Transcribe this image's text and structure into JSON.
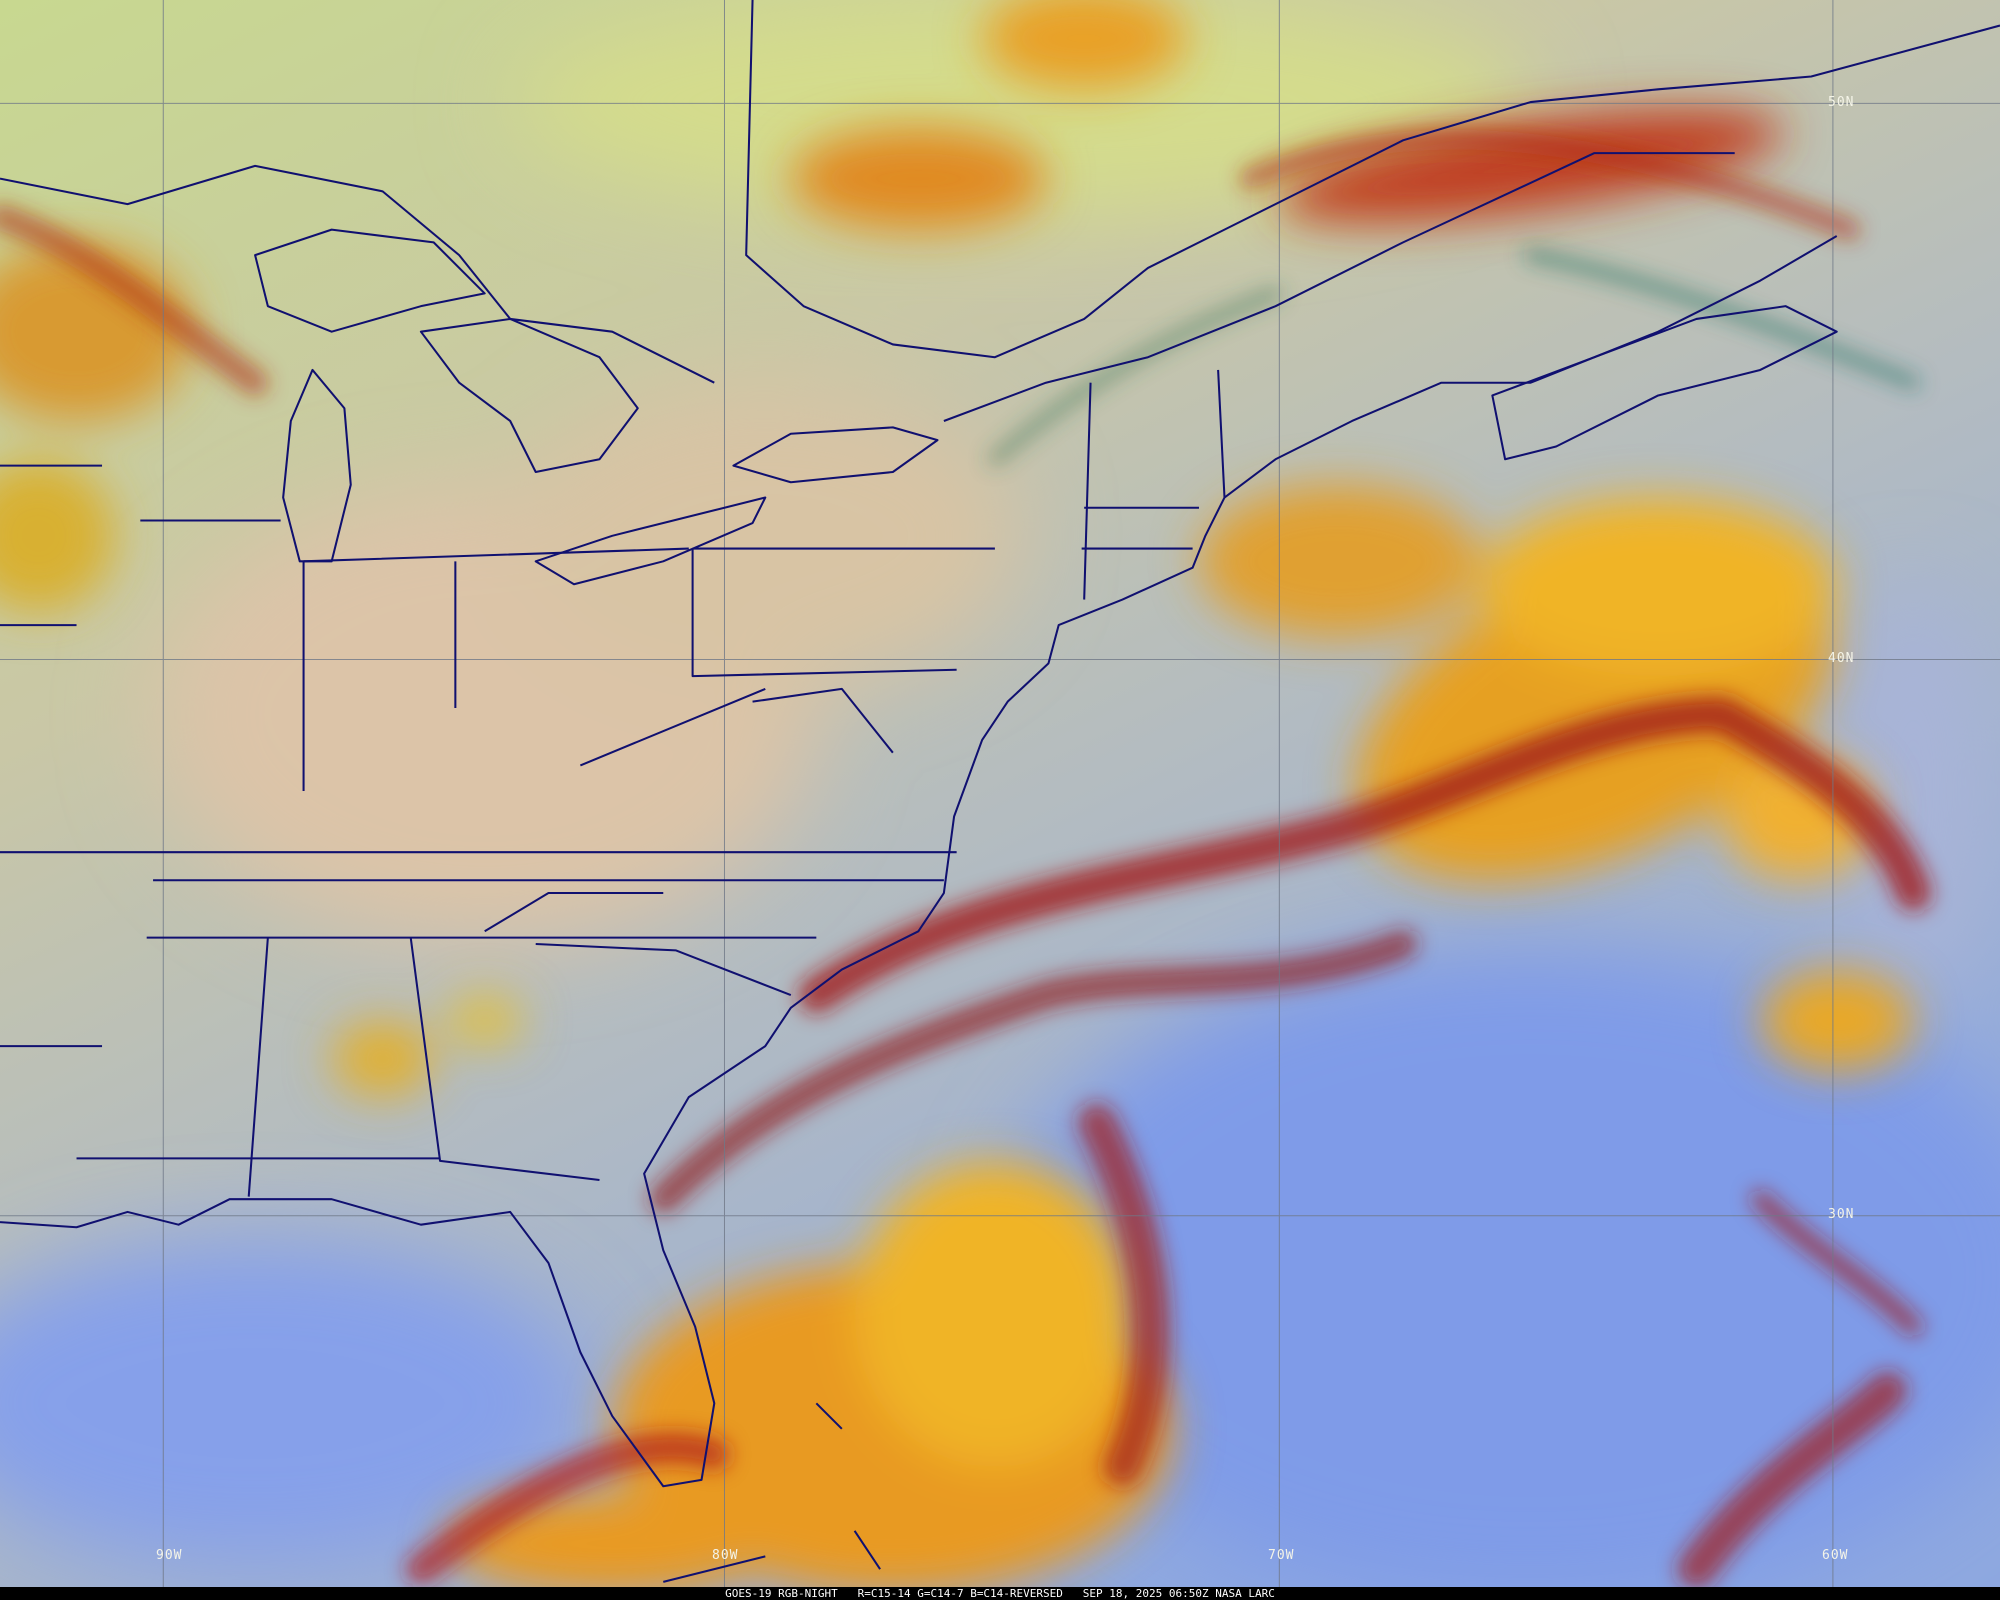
{
  "caption": "GOES-19 RGB-NIGHT   R=C15-14 G=C14-7 B=C14-REVERSED   SEP 18, 2025 06:50Z NASA LARC",
  "grid_labels": {
    "lat": [
      "50N",
      "40N",
      "30N"
    ],
    "lon": [
      "90W",
      "80W",
      "70W",
      "60W"
    ]
  },
  "colors": {
    "boundaries": "#101070",
    "gridlines": "#707888",
    "ocean_clear": "#7f9be8",
    "land_clear": "#d8c8a8",
    "cloud_high": "#f0a020",
    "cloud_edge": "#a01818",
    "north_haze": "#c8d890"
  }
}
